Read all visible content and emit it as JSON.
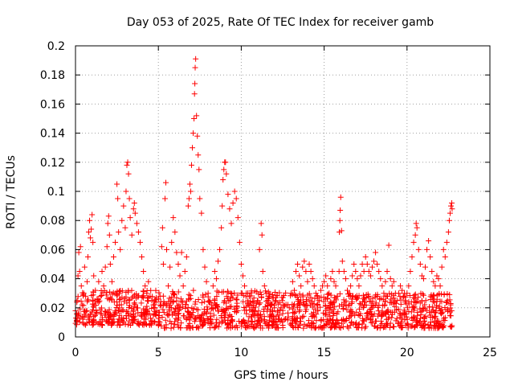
{
  "chart_data": {
    "type": "scatter",
    "title": "Day 053 of 2025, Rate Of TEC Index for receiver gamb",
    "xlabel": "GPS time / hours",
    "ylabel": "ROTI / TECUs",
    "xlim": [
      0,
      25
    ],
    "ylim": [
      0,
      0.2
    ],
    "xticks": [
      0,
      5,
      10,
      15,
      20,
      25
    ],
    "xtick_labels": [
      "0",
      "5",
      "10",
      "15",
      "20",
      "25"
    ],
    "yticks": [
      0,
      0.02,
      0.04,
      0.06,
      0.08,
      0.1,
      0.12,
      0.14,
      0.16,
      0.18,
      0.2
    ],
    "ytick_labels": [
      "0",
      "0.02",
      "0.04",
      "0.06",
      "0.08",
      "0.1",
      "0.12",
      "0.14",
      "0.16",
      "0.18",
      "0.2"
    ],
    "grid": true,
    "marker": "+",
    "marker_color": "#ff0000",
    "series": [
      {
        "name": "ROTI",
        "points": [
          [
            0.0,
            0.018
          ],
          [
            0.1,
            0.025
          ],
          [
            0.15,
            0.042
          ],
          [
            0.2,
            0.058
          ],
          [
            0.25,
            0.045
          ],
          [
            0.3,
            0.062
          ],
          [
            0.35,
            0.035
          ],
          [
            0.4,
            0.022
          ],
          [
            0.5,
            0.03
          ],
          [
            0.55,
            0.048
          ],
          [
            0.6,
            0.028
          ],
          [
            0.7,
            0.038
          ],
          [
            0.75,
            0.055
          ],
          [
            0.8,
            0.072
          ],
          [
            0.85,
            0.08
          ],
          [
            0.9,
            0.068
          ],
          [
            0.95,
            0.074
          ],
          [
            1.0,
            0.084
          ],
          [
            1.05,
            0.065
          ],
          [
            1.1,
            0.042
          ],
          [
            1.2,
            0.032
          ],
          [
            1.3,
            0.026
          ],
          [
            1.4,
            0.038
          ],
          [
            1.5,
            0.028
          ],
          [
            1.6,
            0.045
          ],
          [
            1.7,
            0.035
          ],
          [
            1.8,
            0.048
          ],
          [
            1.9,
            0.062
          ],
          [
            1.95,
            0.078
          ],
          [
            2.0,
            0.083
          ],
          [
            2.05,
            0.07
          ],
          [
            2.1,
            0.05
          ],
          [
            2.2,
            0.038
          ],
          [
            2.3,
            0.055
          ],
          [
            2.4,
            0.065
          ],
          [
            2.5,
            0.105
          ],
          [
            2.55,
            0.095
          ],
          [
            2.6,
            0.072
          ],
          [
            2.7,
            0.06
          ],
          [
            2.8,
            0.08
          ],
          [
            2.9,
            0.09
          ],
          [
            3.0,
            0.075
          ],
          [
            3.05,
            0.1
          ],
          [
            3.1,
            0.118
          ],
          [
            3.15,
            0.12
          ],
          [
            3.2,
            0.112
          ],
          [
            3.25,
            0.095
          ],
          [
            3.3,
            0.082
          ],
          [
            3.4,
            0.07
          ],
          [
            3.5,
            0.088
          ],
          [
            3.55,
            0.092
          ],
          [
            3.6,
            0.085
          ],
          [
            3.7,
            0.078
          ],
          [
            3.8,
            0.072
          ],
          [
            3.9,
            0.065
          ],
          [
            4.0,
            0.055
          ],
          [
            4.1,
            0.045
          ],
          [
            4.2,
            0.035
          ],
          [
            4.3,
            0.03
          ],
          [
            4.4,
            0.038
          ],
          [
            4.5,
            0.028
          ],
          [
            4.6,
            0.025
          ],
          [
            4.7,
            0.022
          ],
          [
            4.8,
            0.02
          ],
          [
            4.9,
            0.018
          ],
          [
            5.1,
            0.028
          ],
          [
            5.2,
            0.062
          ],
          [
            5.25,
            0.075
          ],
          [
            5.3,
            0.05
          ],
          [
            5.4,
            0.095
          ],
          [
            5.45,
            0.106
          ],
          [
            5.5,
            0.06
          ],
          [
            5.6,
            0.035
          ],
          [
            5.7,
            0.048
          ],
          [
            5.8,
            0.065
          ],
          [
            5.9,
            0.082
          ],
          [
            6.0,
            0.072
          ],
          [
            6.1,
            0.058
          ],
          [
            6.2,
            0.05
          ],
          [
            6.3,
            0.042
          ],
          [
            6.4,
            0.058
          ],
          [
            6.5,
            0.035
          ],
          [
            6.6,
            0.045
          ],
          [
            6.7,
            0.055
          ],
          [
            6.8,
            0.09
          ],
          [
            6.85,
            0.095
          ],
          [
            6.9,
            0.105
          ],
          [
            6.95,
            0.1
          ],
          [
            7.0,
            0.118
          ],
          [
            7.05,
            0.13
          ],
          [
            7.1,
            0.14
          ],
          [
            7.15,
            0.15
          ],
          [
            7.18,
            0.167
          ],
          [
            7.2,
            0.174
          ],
          [
            7.22,
            0.185
          ],
          [
            7.25,
            0.191
          ],
          [
            7.3,
            0.152
          ],
          [
            7.35,
            0.138
          ],
          [
            7.4,
            0.125
          ],
          [
            7.45,
            0.115
          ],
          [
            7.5,
            0.095
          ],
          [
            7.6,
            0.085
          ],
          [
            7.7,
            0.06
          ],
          [
            7.8,
            0.048
          ],
          [
            7.9,
            0.038
          ],
          [
            8.0,
            0.03
          ],
          [
            8.1,
            0.025
          ],
          [
            8.2,
            0.022
          ],
          [
            8.3,
            0.035
          ],
          [
            8.4,
            0.045
          ],
          [
            8.5,
            0.04
          ],
          [
            8.6,
            0.052
          ],
          [
            8.7,
            0.06
          ],
          [
            8.8,
            0.075
          ],
          [
            8.85,
            0.09
          ],
          [
            8.9,
            0.108
          ],
          [
            8.95,
            0.115
          ],
          [
            9.0,
            0.12
          ],
          [
            9.05,
            0.12
          ],
          [
            9.1,
            0.112
          ],
          [
            9.2,
            0.098
          ],
          [
            9.3,
            0.088
          ],
          [
            9.4,
            0.078
          ],
          [
            9.5,
            0.092
          ],
          [
            9.6,
            0.1
          ],
          [
            9.7,
            0.095
          ],
          [
            9.8,
            0.082
          ],
          [
            9.9,
            0.065
          ],
          [
            10.0,
            0.05
          ],
          [
            10.1,
            0.042
          ],
          [
            10.2,
            0.035
          ],
          [
            10.3,
            0.03
          ],
          [
            10.4,
            0.025
          ],
          [
            10.5,
            0.028
          ],
          [
            10.6,
            0.022
          ],
          [
            10.7,
            0.02
          ],
          [
            10.8,
            0.018
          ],
          [
            11.0,
            0.025
          ],
          [
            11.1,
            0.06
          ],
          [
            11.2,
            0.078
          ],
          [
            11.25,
            0.07
          ],
          [
            11.3,
            0.045
          ],
          [
            11.4,
            0.035
          ],
          [
            11.5,
            0.03
          ],
          [
            11.6,
            0.025
          ],
          [
            11.7,
            0.028
          ],
          [
            11.8,
            0.022
          ],
          [
            11.9,
            0.018
          ],
          [
            12.0,
            0.02
          ],
          [
            12.1,
            0.025
          ],
          [
            12.2,
            0.018
          ],
          [
            12.3,
            0.015
          ],
          [
            12.4,
            0.02
          ],
          [
            12.5,
            0.016
          ],
          [
            12.6,
            0.012
          ],
          [
            12.9,
            0.02
          ],
          [
            13.0,
            0.03
          ],
          [
            13.1,
            0.038
          ],
          [
            13.2,
            0.032
          ],
          [
            13.3,
            0.045
          ],
          [
            13.4,
            0.05
          ],
          [
            13.5,
            0.042
          ],
          [
            13.6,
            0.035
          ],
          [
            13.7,
            0.048
          ],
          [
            13.8,
            0.052
          ],
          [
            13.9,
            0.045
          ],
          [
            14.0,
            0.038
          ],
          [
            14.1,
            0.05
          ],
          [
            14.2,
            0.045
          ],
          [
            14.3,
            0.04
          ],
          [
            14.4,
            0.035
          ],
          [
            14.5,
            0.03
          ],
          [
            14.6,
            0.028
          ],
          [
            14.7,
            0.025
          ],
          [
            14.8,
            0.032
          ],
          [
            14.9,
            0.035
          ],
          [
            15.0,
            0.038
          ],
          [
            15.1,
            0.042
          ],
          [
            15.2,
            0.035
          ],
          [
            15.3,
            0.03
          ],
          [
            15.4,
            0.04
          ],
          [
            15.5,
            0.045
          ],
          [
            15.6,
            0.038
          ],
          [
            15.7,
            0.035
          ],
          [
            15.8,
            0.028
          ],
          [
            15.9,
            0.045
          ],
          [
            15.92,
            0.072
          ],
          [
            15.95,
            0.08
          ],
          [
            15.97,
            0.087
          ],
          [
            16.0,
            0.096
          ],
          [
            16.05,
            0.073
          ],
          [
            16.1,
            0.052
          ],
          [
            16.2,
            0.045
          ],
          [
            16.3,
            0.04
          ],
          [
            16.4,
            0.032
          ],
          [
            16.5,
            0.028
          ],
          [
            16.6,
            0.035
          ],
          [
            16.7,
            0.042
          ],
          [
            16.8,
            0.05
          ],
          [
            16.9,
            0.045
          ],
          [
            17.0,
            0.04
          ],
          [
            17.1,
            0.035
          ],
          [
            17.2,
            0.042
          ],
          [
            17.3,
            0.05
          ],
          [
            17.4,
            0.045
          ],
          [
            17.5,
            0.055
          ],
          [
            17.6,
            0.05
          ],
          [
            17.7,
            0.045
          ],
          [
            17.8,
            0.042
          ],
          [
            17.9,
            0.048
          ],
          [
            18.0,
            0.052
          ],
          [
            18.1,
            0.058
          ],
          [
            18.2,
            0.05
          ],
          [
            18.3,
            0.045
          ],
          [
            18.4,
            0.04
          ],
          [
            18.5,
            0.035
          ],
          [
            18.6,
            0.03
          ],
          [
            18.7,
            0.038
          ],
          [
            18.8,
            0.045
          ],
          [
            18.9,
            0.063
          ],
          [
            19.0,
            0.04
          ],
          [
            19.1,
            0.035
          ],
          [
            19.2,
            0.038
          ],
          [
            19.3,
            0.03
          ],
          [
            19.4,
            0.025
          ],
          [
            19.5,
            0.03
          ],
          [
            19.6,
            0.035
          ],
          [
            19.7,
            0.032
          ],
          [
            19.8,
            0.028
          ],
          [
            19.9,
            0.025
          ],
          [
            20.0,
            0.03
          ],
          [
            20.1,
            0.035
          ],
          [
            20.2,
            0.045
          ],
          [
            20.3,
            0.055
          ],
          [
            20.4,
            0.065
          ],
          [
            20.5,
            0.07
          ],
          [
            20.55,
            0.078
          ],
          [
            20.6,
            0.075
          ],
          [
            20.7,
            0.06
          ],
          [
            20.8,
            0.05
          ],
          [
            20.9,
            0.042
          ],
          [
            21.0,
            0.04
          ],
          [
            21.1,
            0.048
          ],
          [
            21.2,
            0.06
          ],
          [
            21.3,
            0.066
          ],
          [
            21.4,
            0.055
          ],
          [
            21.5,
            0.045
          ],
          [
            21.6,
            0.038
          ],
          [
            21.7,
            0.035
          ],
          [
            21.8,
            0.042
          ],
          [
            21.9,
            0.04
          ],
          [
            22.0,
            0.035
          ],
          [
            22.1,
            0.048
          ],
          [
            22.2,
            0.06
          ],
          [
            22.3,
            0.055
          ],
          [
            22.4,
            0.065
          ],
          [
            22.5,
            0.072
          ],
          [
            22.55,
            0.08
          ],
          [
            22.6,
            0.085
          ],
          [
            22.65,
            0.09
          ],
          [
            22.7,
            0.092
          ],
          [
            22.72,
            0.088
          ]
        ]
      }
    ],
    "baseline_bands": [
      {
        "x_start": 0.0,
        "x_end": 4.9,
        "y_low": 0.008,
        "y_high": 0.032
      },
      {
        "x_start": 5.0,
        "x_end": 12.7,
        "y_low": 0.006,
        "y_high": 0.032
      },
      {
        "x_start": 12.8,
        "x_end": 22.75,
        "y_low": 0.006,
        "y_high": 0.03
      }
    ]
  }
}
